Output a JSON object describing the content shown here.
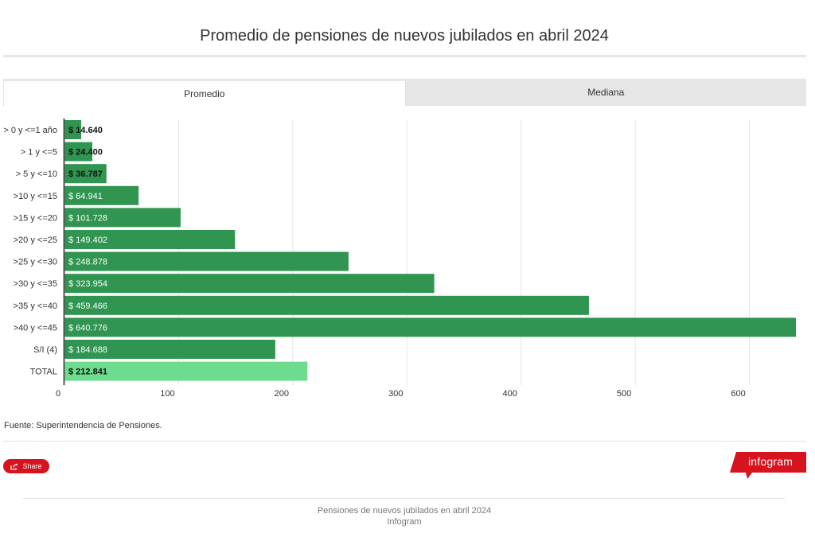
{
  "title": "Promedio de pensiones de nuevos jubilados en abril 2024",
  "tabs": [
    {
      "label": "Promedio",
      "active": true
    },
    {
      "label": "Mediana",
      "active": false
    }
  ],
  "chart_data": {
    "type": "bar",
    "orientation": "horizontal",
    "title": "Promedio de pensiones de nuevos jubilados en abril 2024",
    "categories": [
      "> 0 y <=1 año",
      "> 1 y <=5",
      "> 5 y <=10",
      ">10 y <=15",
      ">15 y <=20",
      ">20 y <=25",
      ">25 y <=30",
      ">30 y <=35",
      ">35 y <=40",
      ">40 y <=45",
      "S/I (4)",
      "TOTAL"
    ],
    "values": [
      14.64,
      24.4,
      36.787,
      64.941,
      101.728,
      149.402,
      248.878,
      323.954,
      459.466,
      640.776,
      184.688,
      212.841
    ],
    "labels": [
      "$ 14.640",
      "$ 24.400",
      "$ 36.787",
      "$ 64.941",
      "$ 101.728",
      "$ 149.402",
      "$ 248.878",
      "$ 323.954",
      "$ 459.466",
      "$ 640.776",
      "$ 184.688",
      "$ 212.841"
    ],
    "highlight": "TOTAL",
    "xlim": [
      0,
      640.776
    ],
    "xticks": [
      0,
      100,
      200,
      300,
      400,
      500,
      600
    ],
    "xlabel": "",
    "ylabel": "",
    "grid": true,
    "colors": {
      "bar": "#2f9550",
      "highlight": "#6ddc8f",
      "grid": "#e6e6e6",
      "axis": "#555555"
    }
  },
  "source": "Fuente: Superintendencia de Pensiones.",
  "share_label": "Share",
  "logo_text": "infogram",
  "logo_color": "#d7141e",
  "footer": {
    "line1": "Pensiones de nuevos jubilados en abril 2024",
    "line2": "Infogram"
  }
}
